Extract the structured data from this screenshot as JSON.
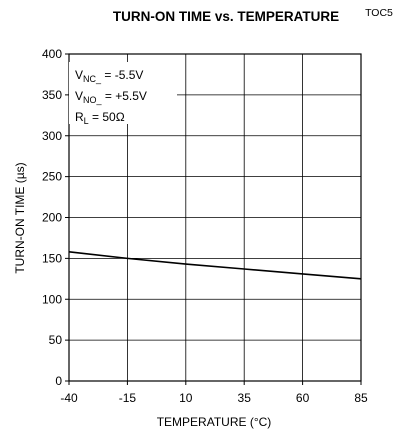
{
  "figure_id": "TOC5",
  "chart_data": {
    "type": "line",
    "title": "TURN-ON TIME vs. TEMPERATURE",
    "xlabel": "TEMPERATURE (°C)",
    "ylabel": "TURN-ON TIME (µs)",
    "xlim": [
      -40,
      85
    ],
    "ylim": [
      0,
      400
    ],
    "xticks": [
      -40,
      -15,
      10,
      35,
      60,
      85
    ],
    "yticks": [
      0,
      50,
      100,
      150,
      200,
      250,
      300,
      350,
      400
    ],
    "grid": true,
    "line_color": "#000000",
    "series": [
      {
        "x": [
          -40,
          -15,
          10,
          35,
          60,
          85
        ],
        "values": [
          158,
          150,
          143,
          137,
          131,
          125
        ]
      }
    ],
    "annotations": [
      {
        "main": "V",
        "sub": "NC_",
        "rest": " = -5.5V"
      },
      {
        "main": "V",
        "sub": "NO_",
        "rest": " = +5.5V"
      },
      {
        "main": "R",
        "sub": "L",
        "rest": " = 50Ω"
      }
    ]
  }
}
